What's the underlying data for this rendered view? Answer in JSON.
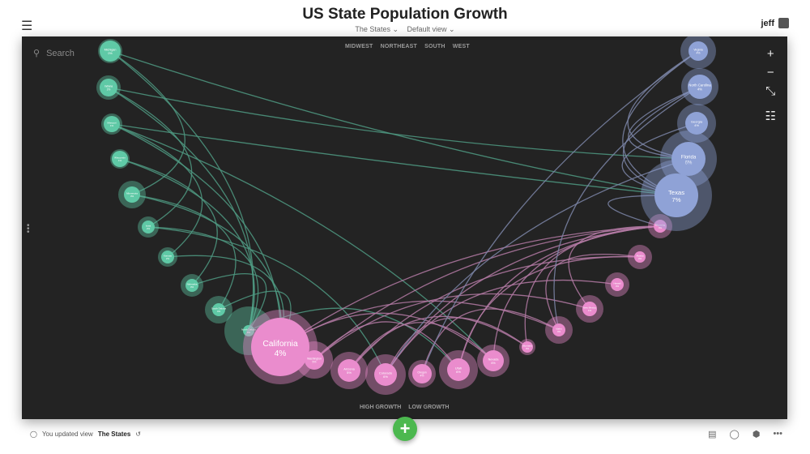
{
  "header": {
    "title": "US State Population Growth",
    "view_menu": "The States ⌄",
    "view_mode": "Default view ⌄",
    "user": "jeff"
  },
  "canvas": {
    "search_placeholder": "Search",
    "regions": [
      "MIDWEST",
      "NORTHEAST",
      "SOUTH",
      "WEST"
    ],
    "growth_legend": [
      "HIGH GROWTH",
      "LOW GROWTH"
    ],
    "tools": {
      "zoom_in": "+",
      "zoom_out": "−",
      "fit": "⤡",
      "settings": "☷"
    }
  },
  "footer": {
    "update_prefix": "You updated view",
    "update_view": "The States",
    "add": "+"
  },
  "colors": {
    "midwest": "#5fc9a6",
    "west": "#ea8ccd",
    "south": "#8fa2d6",
    "background": "#232323",
    "fab": "#4cb84f"
  },
  "chart_data": {
    "type": "network",
    "groups": {
      "midwest": "#5fc9a6",
      "west": "#ea8ccd",
      "south": "#8fa2d6"
    },
    "nodes": [
      {
        "name": "Michigan",
        "growth": "0%",
        "group": "midwest"
      },
      {
        "name": "Indiana",
        "growth": "2%",
        "group": "midwest"
      },
      {
        "name": "Missouri",
        "growth": "1%",
        "group": "midwest"
      },
      {
        "name": "Wisconsin",
        "growth": "1%",
        "group": "midwest"
      },
      {
        "name": "Minnesota",
        "growth": "3%",
        "group": "midwest"
      },
      {
        "name": "Iowa",
        "growth": "2%",
        "group": "midwest"
      },
      {
        "name": "Kansas",
        "growth": "2%",
        "group": "midwest"
      },
      {
        "name": "Nebraska",
        "growth": "3%",
        "group": "midwest"
      },
      {
        "name": "South Dakota",
        "growth": "4%",
        "group": "midwest"
      },
      {
        "name": "North Dakota",
        "growth": "9%",
        "group": "midwest"
      },
      {
        "name": "California",
        "growth": "4%",
        "group": "west"
      },
      {
        "name": "Washington",
        "growth": "5%",
        "group": "west"
      },
      {
        "name": "Arizona",
        "growth": "5%",
        "group": "west"
      },
      {
        "name": "Colorado",
        "growth": "6%",
        "group": "west"
      },
      {
        "name": "Oregon",
        "growth": "4%",
        "group": "west"
      },
      {
        "name": "Utah",
        "growth": "6%",
        "group": "west"
      },
      {
        "name": "Nevada",
        "growth": "6%",
        "group": "west"
      },
      {
        "name": "Montana",
        "growth": "3%",
        "group": "west"
      },
      {
        "name": "Idaho",
        "growth": "4%",
        "group": "west"
      },
      {
        "name": "New Mexico",
        "growth": "1%",
        "group": "west"
      },
      {
        "name": "Hawaii",
        "growth": "3%",
        "group": "west"
      },
      {
        "name": "Alaska",
        "growth": "3%",
        "group": "west"
      },
      {
        "name": "Wyoming",
        "growth": "4%",
        "group": "west"
      },
      {
        "name": "Virginia",
        "growth": "4%",
        "group": "south"
      },
      {
        "name": "North Carolina",
        "growth": "4%",
        "group": "south"
      },
      {
        "name": "Georgia",
        "growth": "4%",
        "group": "south"
      },
      {
        "name": "Florida",
        "growth": "6%",
        "group": "south"
      },
      {
        "name": "Texas",
        "growth": "7%",
        "group": "south"
      }
    ],
    "links": [
      [
        0,
        4
      ],
      [
        0,
        9
      ],
      [
        0,
        27
      ],
      [
        1,
        5
      ],
      [
        1,
        9
      ],
      [
        1,
        26
      ],
      [
        2,
        6
      ],
      [
        2,
        10
      ],
      [
        2,
        27
      ],
      [
        2,
        16
      ],
      [
        3,
        7
      ],
      [
        3,
        9
      ],
      [
        4,
        8
      ],
      [
        4,
        10
      ],
      [
        5,
        9
      ],
      [
        5,
        13
      ],
      [
        6,
        10
      ],
      [
        7,
        9
      ],
      [
        8,
        10
      ],
      [
        9,
        15
      ],
      [
        10,
        22
      ],
      [
        10,
        18
      ],
      [
        10,
        16
      ],
      [
        11,
        22
      ],
      [
        11,
        19
      ],
      [
        12,
        21
      ],
      [
        12,
        17
      ],
      [
        13,
        22
      ],
      [
        13,
        20
      ],
      [
        14,
        18
      ],
      [
        15,
        22
      ],
      [
        15,
        21
      ],
      [
        16,
        22
      ],
      [
        17,
        22
      ],
      [
        18,
        21
      ],
      [
        19,
        22
      ],
      [
        11,
        15
      ],
      [
        12,
        16
      ],
      [
        13,
        17
      ],
      [
        23,
        27
      ],
      [
        24,
        26
      ],
      [
        25,
        27
      ],
      [
        23,
        26
      ],
      [
        24,
        27
      ],
      [
        27,
        22
      ],
      [
        26,
        13
      ],
      [
        23,
        14
      ],
      [
        24,
        18
      ]
    ]
  }
}
